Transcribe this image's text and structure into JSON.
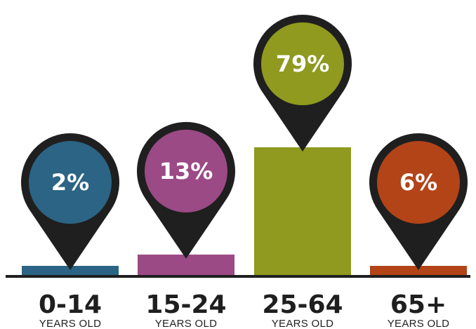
{
  "chart_data": {
    "type": "bar",
    "title": "",
    "xlabel": "",
    "ylabel": "",
    "ylim": [
      0,
      100
    ],
    "grid": false,
    "categories": [
      "0-14",
      "15-24",
      "25-64",
      "65+"
    ],
    "sublabels": [
      "YEARS OLD",
      "YEARS OLD",
      "YEARS OLD",
      "YEARS OLD"
    ],
    "values": [
      2,
      13,
      79,
      6
    ],
    "value_labels": [
      "2%",
      "13%",
      "79%",
      "6%"
    ],
    "colors": [
      "#2b6484",
      "#9b4a86",
      "#8f9a1f",
      "#b24418"
    ],
    "pin_color": "#1f1f1f",
    "axis_color": "#1f1f1f"
  }
}
